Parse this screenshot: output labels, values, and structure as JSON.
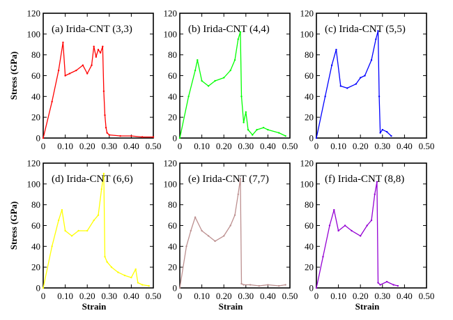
{
  "chart_data": [
    {
      "type": "line",
      "panel_label": "(a) Irida-CNT (3,3)",
      "color": "#ff0000",
      "xlabel": "",
      "ylabel": "Stress (GPa)",
      "xlim": [
        0,
        0.5
      ],
      "ylim": [
        0,
        120
      ],
      "x_ticks": [
        "0",
        "0.10",
        "0.20",
        "0.30",
        "0.40",
        "0.50"
      ],
      "y_ticks": [
        "0",
        "20",
        "40",
        "60",
        "80",
        "100",
        "120"
      ],
      "x": [
        0,
        0.04,
        0.07,
        0.09,
        0.1,
        0.12,
        0.15,
        0.18,
        0.2,
        0.22,
        0.23,
        0.24,
        0.25,
        0.26,
        0.27,
        0.275,
        0.28,
        0.285,
        0.29,
        0.3,
        0.35,
        0.4,
        0.45,
        0.5
      ],
      "y": [
        0,
        35,
        65,
        92,
        60,
        62,
        65,
        70,
        62,
        70,
        88,
        78,
        85,
        82,
        88,
        45,
        22,
        10,
        5,
        3,
        2,
        2,
        1,
        1
      ]
    },
    {
      "type": "line",
      "panel_label": "(b) Irida-CNT (4,4)",
      "color": "#00ff00",
      "xlabel": "",
      "ylabel": "",
      "xlim": [
        0,
        0.5
      ],
      "ylim": [
        0,
        120
      ],
      "x_ticks": [
        "0",
        "0.10",
        "0.20",
        "0.30",
        "0.40",
        "0.50"
      ],
      "y_ticks": [
        "0",
        "20",
        "40",
        "60",
        "80",
        "100",
        "120"
      ],
      "x": [
        0,
        0.04,
        0.07,
        0.08,
        0.1,
        0.13,
        0.16,
        0.2,
        0.23,
        0.25,
        0.265,
        0.275,
        0.28,
        0.29,
        0.3,
        0.31,
        0.33,
        0.35,
        0.38,
        0.4,
        0.45,
        0.48
      ],
      "y": [
        0,
        40,
        65,
        75,
        55,
        50,
        55,
        58,
        65,
        75,
        95,
        102,
        40,
        15,
        25,
        8,
        3,
        8,
        10,
        8,
        5,
        2
      ]
    },
    {
      "type": "line",
      "panel_label": "(c) Irida-CNT (5,5)",
      "color": "#0000ff",
      "xlabel": "",
      "ylabel": "",
      "xlim": [
        0,
        0.5
      ],
      "ylim": [
        0,
        120
      ],
      "x_ticks": [
        "0",
        "0.10",
        "0.20",
        "0.30",
        "0.40",
        "0.50"
      ],
      "y_ticks": [
        "0",
        "20",
        "40",
        "60",
        "80",
        "100",
        "120"
      ],
      "x": [
        0,
        0.04,
        0.07,
        0.09,
        0.11,
        0.14,
        0.18,
        0.2,
        0.22,
        0.25,
        0.27,
        0.28,
        0.285,
        0.29,
        0.3,
        0.32,
        0.34
      ],
      "y": [
        0,
        40,
        70,
        85,
        50,
        48,
        52,
        58,
        60,
        75,
        95,
        103,
        40,
        5,
        8,
        6,
        2
      ]
    },
    {
      "type": "line",
      "panel_label": "(d) Irida-CNT (6,6)",
      "color": "#ffff00",
      "xlabel": "Strain",
      "ylabel": "Stress (GPa)",
      "xlim": [
        0,
        0.5
      ],
      "ylim": [
        0,
        120
      ],
      "x_ticks": [
        "0",
        "0.10",
        "0.20",
        "0.30",
        "0.40",
        "0.50"
      ],
      "y_ticks": [
        "0",
        "20",
        "40",
        "60",
        "80",
        "100",
        "120"
      ],
      "x": [
        0,
        0.04,
        0.07,
        0.085,
        0.1,
        0.13,
        0.16,
        0.2,
        0.23,
        0.25,
        0.265,
        0.275,
        0.28,
        0.29,
        0.31,
        0.34,
        0.37,
        0.4,
        0.42,
        0.43,
        0.45,
        0.48
      ],
      "y": [
        0,
        40,
        65,
        75,
        55,
        50,
        55,
        55,
        65,
        70,
        95,
        110,
        30,
        25,
        20,
        15,
        12,
        10,
        18,
        5,
        3,
        2
      ]
    },
    {
      "type": "line",
      "panel_label": "(e) Irida-CNT (7,7)",
      "color": "#bc8f8f",
      "xlabel": "Strain",
      "ylabel": "",
      "xlim": [
        0,
        0.5
      ],
      "ylim": [
        0,
        120
      ],
      "x_ticks": [
        "0",
        "0.10",
        "0.20",
        "0.30",
        "0.40",
        "0.50"
      ],
      "y_ticks": [
        "0",
        "20",
        "40",
        "60",
        "80",
        "100",
        "120"
      ],
      "x": [
        0,
        0.03,
        0.05,
        0.07,
        0.1,
        0.13,
        0.16,
        0.2,
        0.23,
        0.25,
        0.265,
        0.275,
        0.28,
        0.29,
        0.32,
        0.36,
        0.4,
        0.45,
        0.48
      ],
      "y": [
        0,
        40,
        55,
        68,
        55,
        50,
        45,
        50,
        60,
        70,
        90,
        105,
        4,
        3,
        3,
        2,
        3,
        2,
        3
      ]
    },
    {
      "type": "line",
      "panel_label": "(f) Irida-CNT (8,8)",
      "color": "#9400d3",
      "xlabel": "Strain",
      "ylabel": "",
      "xlim": [
        0,
        0.5
      ],
      "ylim": [
        0,
        120
      ],
      "x_ticks": [
        "0",
        "0.10",
        "0.20",
        "0.30",
        "0.40",
        "0.50"
      ],
      "y_ticks": [
        "0",
        "20",
        "40",
        "60",
        "80",
        "100",
        "120"
      ],
      "x": [
        0,
        0.03,
        0.06,
        0.08,
        0.1,
        0.13,
        0.16,
        0.2,
        0.23,
        0.25,
        0.265,
        0.275,
        0.28,
        0.29,
        0.32,
        0.35,
        0.37
      ],
      "y": [
        0,
        30,
        60,
        75,
        55,
        60,
        55,
        50,
        60,
        65,
        90,
        102,
        5,
        3,
        6,
        3,
        2
      ]
    }
  ]
}
